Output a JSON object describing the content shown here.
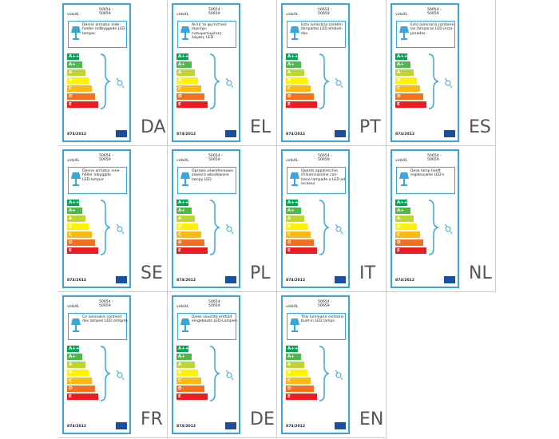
{
  "brand": "vidaXL",
  "model": [
    "50654 -",
    "50659"
  ],
  "classes": [
    "A++",
    "A+",
    "A",
    "B",
    "C",
    "D",
    "E"
  ],
  "regulation": "874/2012",
  "labels": [
    {
      "code": "DA",
      "lines": [
        "Denne armatur inde-",
        "holder indbyggede LED",
        "lamper."
      ]
    },
    {
      "code": "EL",
      "lines": [
        "Αυτό το φωτιστικό",
        "περιέχει",
        "ενσωματωμένες",
        "λάμπες LED."
      ]
    },
    {
      "code": "PT",
      "lines": [
        "Esta luminária contém",
        "lâmpadas LED embuti-",
        "das."
      ]
    },
    {
      "code": "ES",
      "lines": [
        "Esta luminaria contiene",
        "las lámparas LED incor-",
        "poradas."
      ]
    },
    {
      "code": "SE",
      "lines": [
        "Denna armatur inne-",
        "håller inbyggda",
        "LED-lampor."
      ]
    },
    {
      "code": "PL",
      "lines": [
        "Oprawa oświetleniowa",
        "zawiera wbudowane",
        "lampy LED."
      ]
    },
    {
      "code": "IT",
      "lines": [
        "Questo apparecchio",
        "d'illuminazione con-",
        "tiene lampade a LED ad",
        "incasso."
      ]
    },
    {
      "code": "NL",
      "lines": [
        "Deze lamp heeft",
        "ingebouwde LED's."
      ]
    },
    {
      "code": "FR",
      "lines": [
        "Ce luminaire contient",
        "des lampes LED intégrés."
      ]
    },
    {
      "code": "DE",
      "lines": [
        "Diese Leuchte enthält",
        "eingebaute LED-Lampen."
      ]
    },
    {
      "code": "EN",
      "lines": [
        "This luminaire contains",
        "built-in LED lamps."
      ]
    }
  ]
}
